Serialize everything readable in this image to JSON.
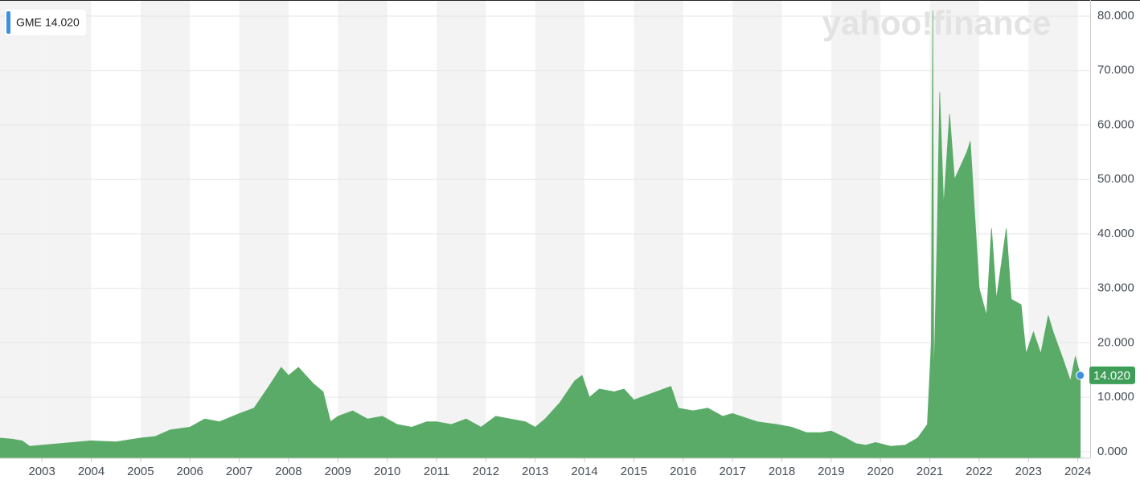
{
  "chart_data": {
    "type": "area",
    "watermark": "yahoo!finance",
    "x": [
      2002.15,
      2002.4,
      2002.6,
      2002.75,
      2003.0,
      2003.5,
      2004.0,
      2004.5,
      2005.0,
      2005.3,
      2005.6,
      2006.0,
      2006.3,
      2006.6,
      2007.0,
      2007.3,
      2007.6,
      2007.85,
      2008.0,
      2008.2,
      2008.5,
      2008.7,
      2008.85,
      2009.0,
      2009.3,
      2009.6,
      2009.9,
      2010.2,
      2010.5,
      2010.8,
      2011.0,
      2011.3,
      2011.6,
      2011.9,
      2012.2,
      2012.5,
      2012.8,
      2013.0,
      2013.2,
      2013.5,
      2013.8,
      2013.95,
      2014.1,
      2014.3,
      2014.6,
      2014.8,
      2015.0,
      2015.3,
      2015.6,
      2015.75,
      2015.9,
      2016.2,
      2016.5,
      2016.8,
      2017.0,
      2017.5,
      2017.9,
      2018.2,
      2018.5,
      2018.8,
      2019.0,
      2019.3,
      2019.5,
      2019.7,
      2019.9,
      2020.2,
      2020.5,
      2020.75,
      2020.95,
      2021.03,
      2021.06,
      2021.08,
      2021.15,
      2021.2,
      2021.28,
      2021.4,
      2021.5,
      2021.6,
      2021.75,
      2021.82,
      2021.9,
      2022.0,
      2022.15,
      2022.25,
      2022.35,
      2022.55,
      2022.65,
      2022.85,
      2022.95,
      2023.1,
      2023.25,
      2023.4,
      2023.5,
      2023.7,
      2023.85,
      2023.95,
      2024.05
    ],
    "series": [
      {
        "name": "GME",
        "color": "#5aab68",
        "values": [
          2.5,
          2.3,
          2.0,
          1.0,
          1.2,
          1.6,
          2.0,
          1.8,
          2.5,
          2.8,
          4.0,
          4.5,
          6.0,
          5.5,
          7.0,
          8.0,
          12.0,
          15.5,
          14.0,
          15.5,
          12.5,
          11.0,
          5.5,
          6.5,
          7.5,
          6.0,
          6.5,
          5.0,
          4.5,
          5.5,
          5.5,
          5.0,
          6.0,
          4.5,
          6.5,
          6.0,
          5.5,
          4.5,
          6.0,
          9.0,
          13.0,
          14.0,
          10.0,
          11.5,
          11.0,
          11.5,
          9.5,
          10.5,
          11.5,
          12.0,
          8.0,
          7.5,
          8.0,
          6.5,
          7.0,
          5.5,
          5.0,
          4.5,
          3.5,
          3.5,
          3.8,
          2.5,
          1.5,
          1.2,
          1.7,
          1.0,
          1.2,
          2.5,
          5.0,
          20.0,
          81.0,
          12.0,
          40.0,
          66.0,
          45.0,
          62.0,
          50.0,
          52.0,
          55.0,
          57.0,
          45.0,
          30.0,
          25.0,
          41.0,
          28.0,
          41.0,
          28.0,
          27.0,
          18.0,
          22.0,
          18.0,
          25.0,
          22.0,
          17.0,
          13.0,
          17.5,
          14.02
        ],
        "last_value_label": "14.020",
        "last_color": "#3d8fe0",
        "badge_color": "#3e9e57"
      }
    ],
    "xlim": [
      2002.15,
      2024.25
    ],
    "xticks": [
      2003,
      2004,
      2005,
      2006,
      2007,
      2008,
      2009,
      2010,
      2011,
      2012,
      2013,
      2014,
      2015,
      2016,
      2017,
      2018,
      2019,
      2020,
      2021,
      2022,
      2023,
      2024
    ],
    "ylim": [
      -1.2,
      82.95
    ],
    "yticks": [
      {
        "value": 0,
        "label": "0.000"
      },
      {
        "value": 10,
        "label": "10.000"
      },
      {
        "value": 20,
        "label": "20.000"
      },
      {
        "value": 30,
        "label": "30.000"
      },
      {
        "value": 40,
        "label": "40.000"
      },
      {
        "value": 50,
        "label": "50.000"
      },
      {
        "value": 60,
        "label": "60.000"
      },
      {
        "value": 70,
        "label": "70.000"
      },
      {
        "value": 80,
        "label": "80.000"
      }
    ],
    "grid": true,
    "year_bands": true
  }
}
